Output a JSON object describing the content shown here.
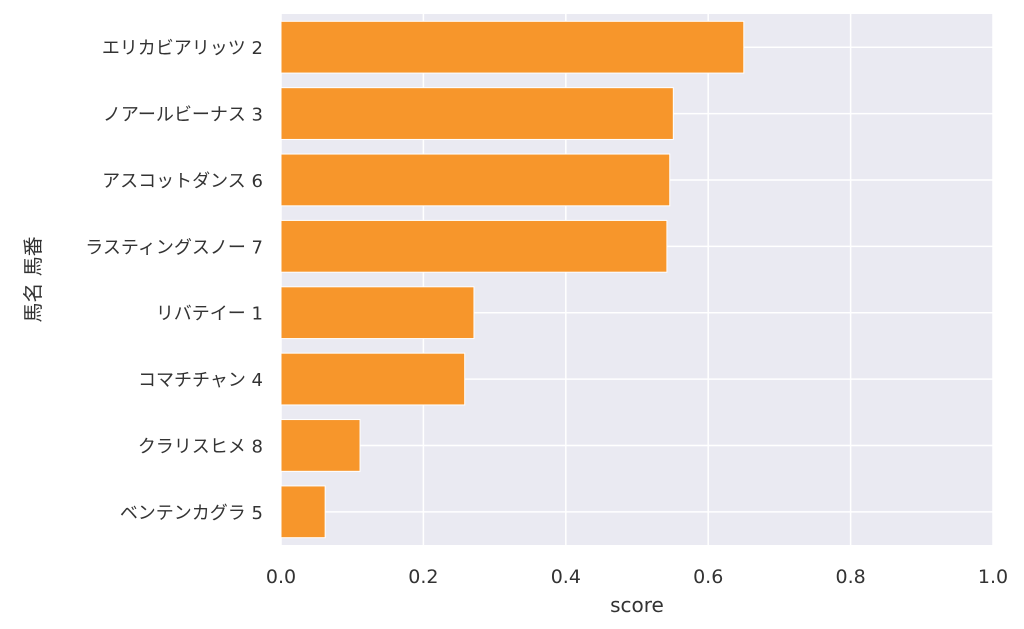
{
  "chart_data": {
    "type": "bar",
    "orientation": "horizontal",
    "categories": [
      "エリカビアリッツ 2",
      "ノアールビーナス 3",
      "アスコットダンス 6",
      "ラスティングスノー 7",
      "リバテイー 1",
      "コマチチャン 4",
      "クラリスヒメ 8",
      "ベンテンカグラ 5"
    ],
    "values": [
      0.65,
      0.551,
      0.546,
      0.542,
      0.271,
      0.258,
      0.111,
      0.062
    ],
    "xlabel": "score",
    "ylabel": "馬名 馬番",
    "xlim": [
      0,
      1.0
    ],
    "xticks": [
      "0.0",
      "0.2",
      "0.4",
      "0.6",
      "0.8",
      "1.0"
    ],
    "grid": true,
    "colors": {
      "bar": "#f7962b",
      "background": "#eaeaf2",
      "grid": "#ffffff",
      "text": "#333333"
    }
  }
}
